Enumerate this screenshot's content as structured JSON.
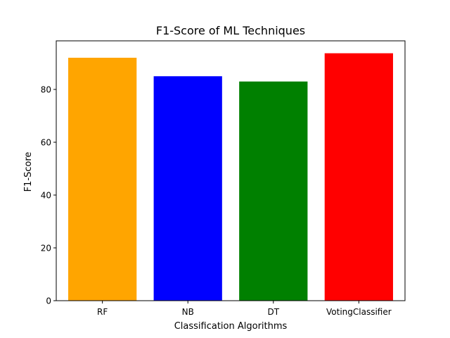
{
  "chart_data": {
    "type": "bar",
    "title": "F1-Score of ML Techniques",
    "xlabel": "Classification Algorithms",
    "ylabel": "F1-Score",
    "categories": [
      "RF",
      "NB",
      "DT",
      "VotingClassifier"
    ],
    "values": [
      92.0,
      85.0,
      83.0,
      93.7
    ],
    "colors": [
      "#ffa500",
      "#0000ff",
      "#008000",
      "#ff0000"
    ],
    "ylim": [
      0,
      98.4
    ],
    "yticks": [
      0,
      20,
      40,
      60,
      80
    ],
    "grid": false,
    "legend": "none"
  }
}
